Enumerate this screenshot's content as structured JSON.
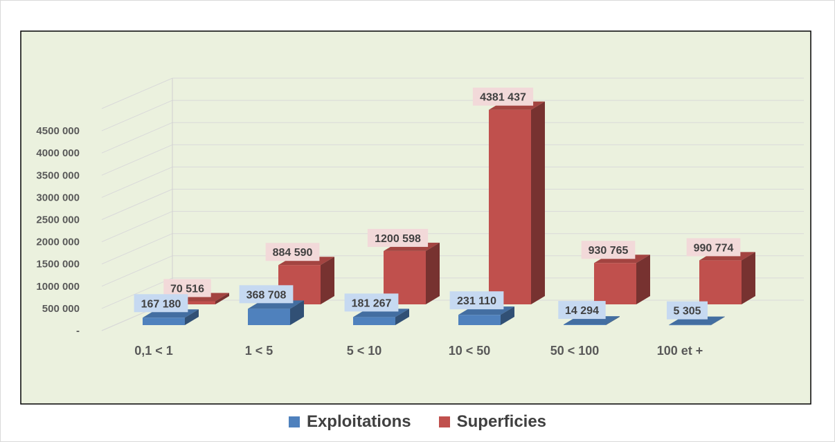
{
  "chart_data": {
    "type": "bar",
    "variant": "3d-clustered-column",
    "title": "",
    "xlabel": "",
    "ylabel": "",
    "categories": [
      "0,1 < 1",
      "1 < 5",
      "5 < 10",
      "10 < 50",
      "50 < 100",
      "100 et +"
    ],
    "series": [
      {
        "name": "Exploitations",
        "color": "#4f81bd",
        "values": [
          167180,
          368708,
          181267,
          231110,
          14294,
          5305
        ],
        "labels": [
          "167 180",
          "368 708",
          "181 267",
          "231 110",
          "14 294",
          "5 305"
        ]
      },
      {
        "name": "Superficies",
        "color": "#c0504d",
        "values": [
          70516,
          884590,
          1200598,
          4381437,
          930765,
          990774
        ],
        "labels": [
          "70 516",
          "884 590",
          "1200 598",
          "4381 437",
          "930 765",
          "990 774"
        ]
      }
    ],
    "yticks": [
      0,
      500000,
      1000000,
      1500000,
      2000000,
      2500000,
      3000000,
      3500000,
      4000000,
      4500000
    ],
    "ytick_labels": [
      "-",
      "500 000",
      "1000 000",
      "1500 000",
      "2000 000",
      "2500 000",
      "3000 000",
      "3500 000",
      "4000 000",
      "4500 000"
    ],
    "ylim": [
      0,
      5000000
    ],
    "grid": true,
    "legend_position": "bottom",
    "plot_background": "#ebf1de"
  }
}
